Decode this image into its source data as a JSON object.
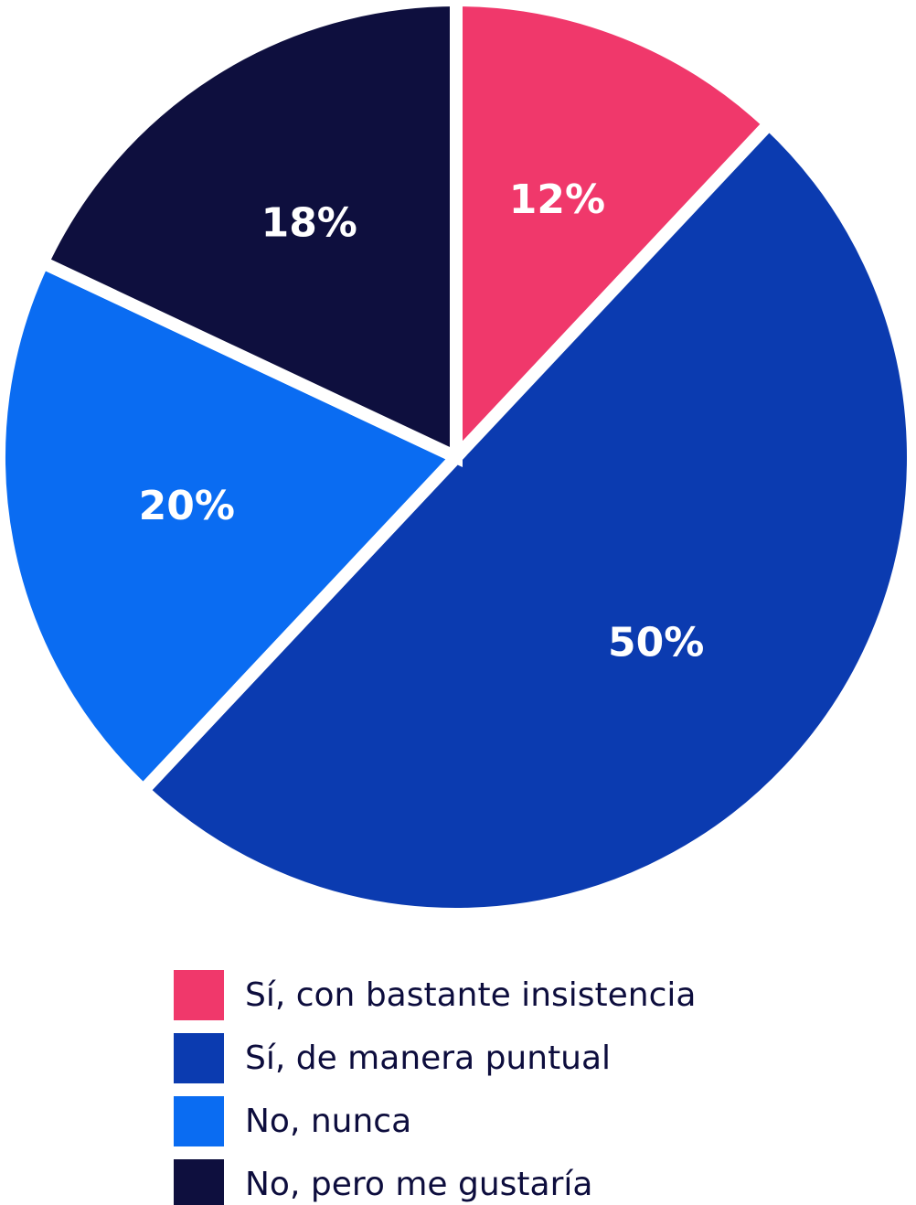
{
  "chart_data": {
    "type": "pie",
    "categories": [
      "Sí, con bastante insistencia",
      "Sí, de manera puntual",
      "No, nunca",
      "No, pero me gustaría"
    ],
    "values": [
      12,
      50,
      20,
      18
    ],
    "value_labels": [
      "12%",
      "50%",
      "20%",
      "18%"
    ],
    "colors": [
      "#f0386b",
      "#0b3bb0",
      "#0a6cf2",
      "#0e0f3e"
    ]
  }
}
